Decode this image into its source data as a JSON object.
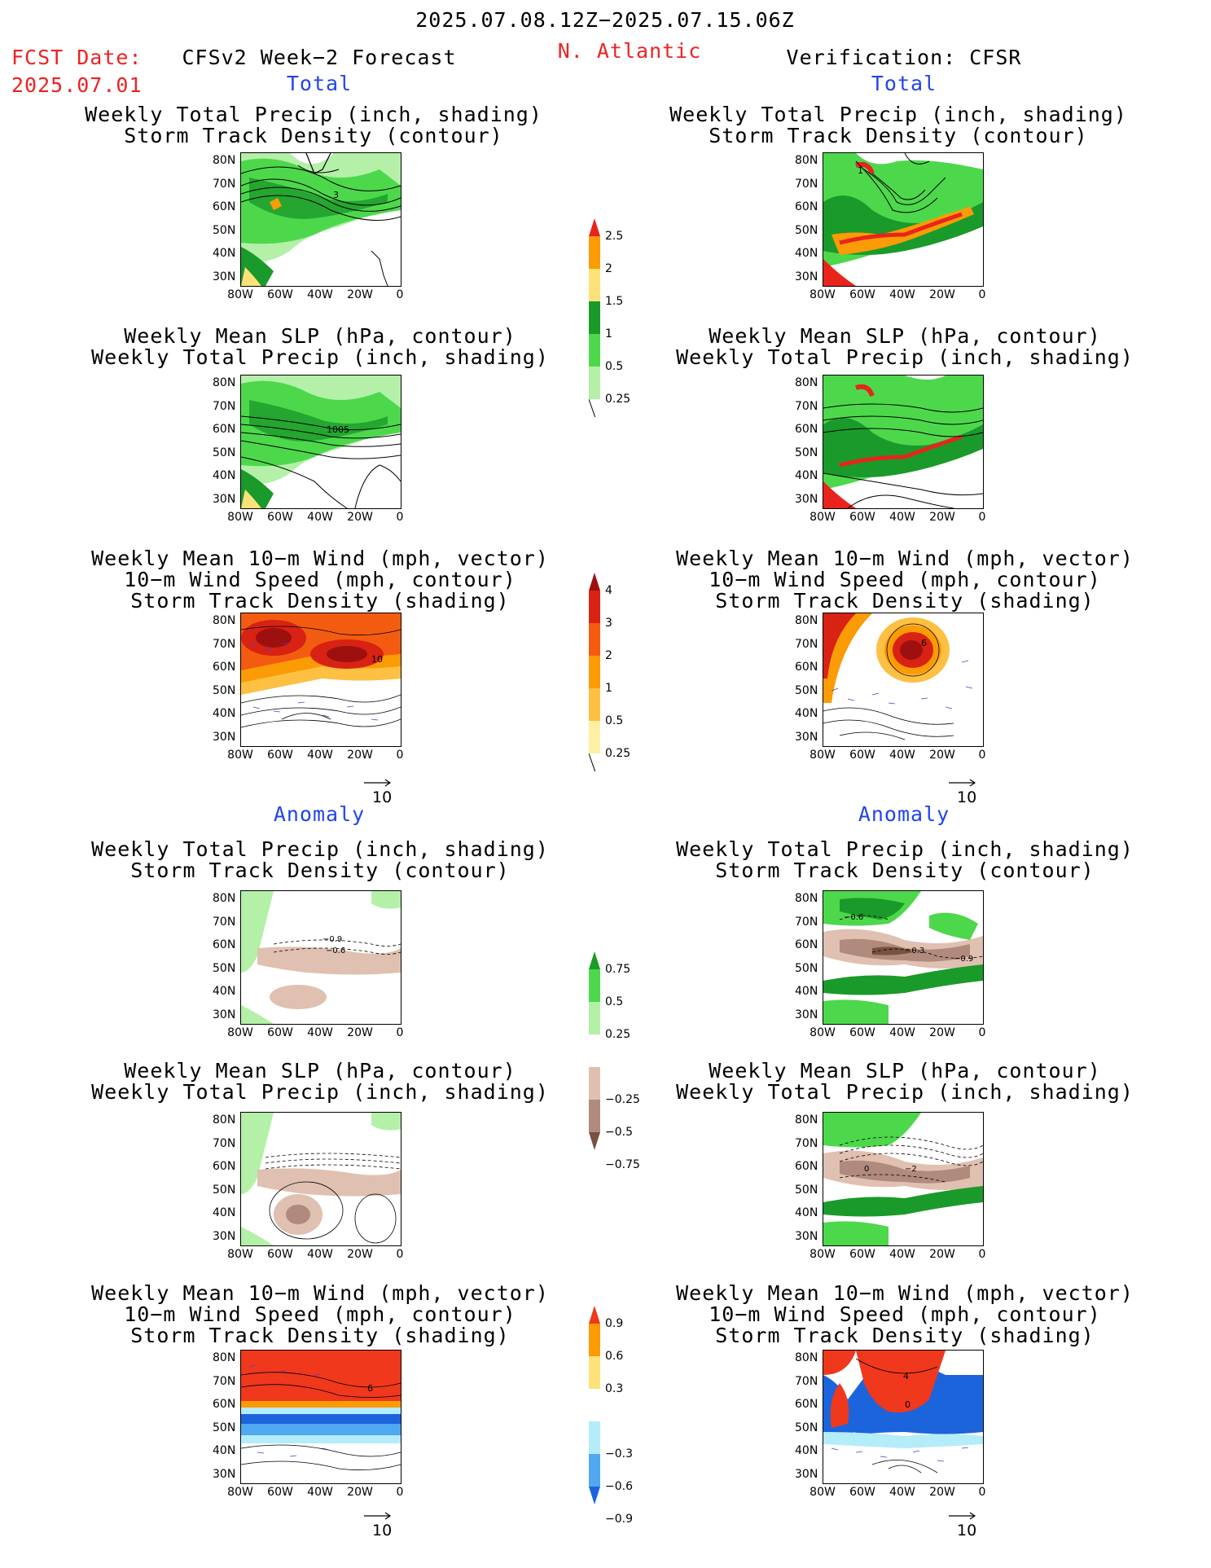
{
  "header": {
    "time_range": "2025.07.08.12Z−2025.07.15.06Z",
    "fcst_label": "FCST Date:",
    "fcst_date": "2025.07.01",
    "model": "CFSv2 Week−2 Forecast",
    "region": "N. Atlantic",
    "verification": "Verification: CFSR"
  },
  "sections": {
    "total": "Total",
    "anomaly": "Anomaly"
  },
  "panel_titles": {
    "precip_storm": [
      "Weekly Total Precip (inch, shading)",
      "Storm Track Density (contour)"
    ],
    "slp_precip": [
      "Weekly Mean SLP (hPa, contour)",
      "Weekly Total Precip (inch, shading)"
    ],
    "wind_storm": [
      "Weekly Mean 10−m Wind (mph, vector)",
      "10−m Wind Speed (mph, contour)",
      "Storm Track Density (shading)"
    ]
  },
  "axes": {
    "lat_ticks": [
      "80N",
      "70N",
      "60N",
      "50N",
      "40N",
      "30N"
    ],
    "lon_ticks": [
      "80W",
      "60W",
      "40W",
      "20W",
      "0"
    ]
  },
  "vector_ref": "10",
  "contour_labels": {
    "fc_total_precip": "3",
    "fc_total_slp": "1005",
    "fc_total_wind": "10",
    "ob_total_precip": "1",
    "ob_total_wind": "6",
    "fc_anom_precip_a": "−0.9",
    "fc_anom_precip_b": "−0.6",
    "ob_anom_precip_a": "−0.6",
    "ob_anom_precip_b": "−0.3",
    "ob_anom_precip_c": "−0.9",
    "ob_anom_slp_a": "0",
    "ob_anom_slp_b": "−2",
    "fc_anom_wind": "6",
    "ob_anom_wind_a": "4",
    "ob_anom_wind_b": "0"
  },
  "colorbars": {
    "precip_total": {
      "labels": [
        "2.5",
        "2",
        "1.5",
        "1",
        "0.5",
        "0.25"
      ],
      "colors": [
        "#e8241c",
        "#fb9b06",
        "#fde27a",
        "#1a9a2a",
        "#4dd84c",
        "#b4f0a8"
      ]
    },
    "storm_total": {
      "labels": [
        "4",
        "3",
        "2",
        "1",
        "0.5",
        "0.25"
      ],
      "colors": [
        "#9e1010",
        "#d82214",
        "#f35c10",
        "#fb9b06",
        "#fdc042",
        "#fdf0a4"
      ]
    },
    "precip_anom": {
      "labels": [
        "0.75",
        "0.5",
        "0.25",
        "−0.25",
        "−0.5",
        "−0.75"
      ],
      "colors": [
        "#1a9a2a",
        "#4dd84c",
        "#b4f0a8",
        "#ffffff",
        "#e0c0b0",
        "#b08a7c",
        "#7a5040"
      ]
    },
    "storm_anom": {
      "labels": [
        "0.9",
        "0.6",
        "0.3",
        "−0.3",
        "−0.6",
        "−0.9"
      ],
      "colors": [
        "#f0381c",
        "#fb9b06",
        "#fde27a",
        "#ffffff",
        "#b4ecfa",
        "#50a8f0",
        "#1c64dc"
      ]
    }
  }
}
